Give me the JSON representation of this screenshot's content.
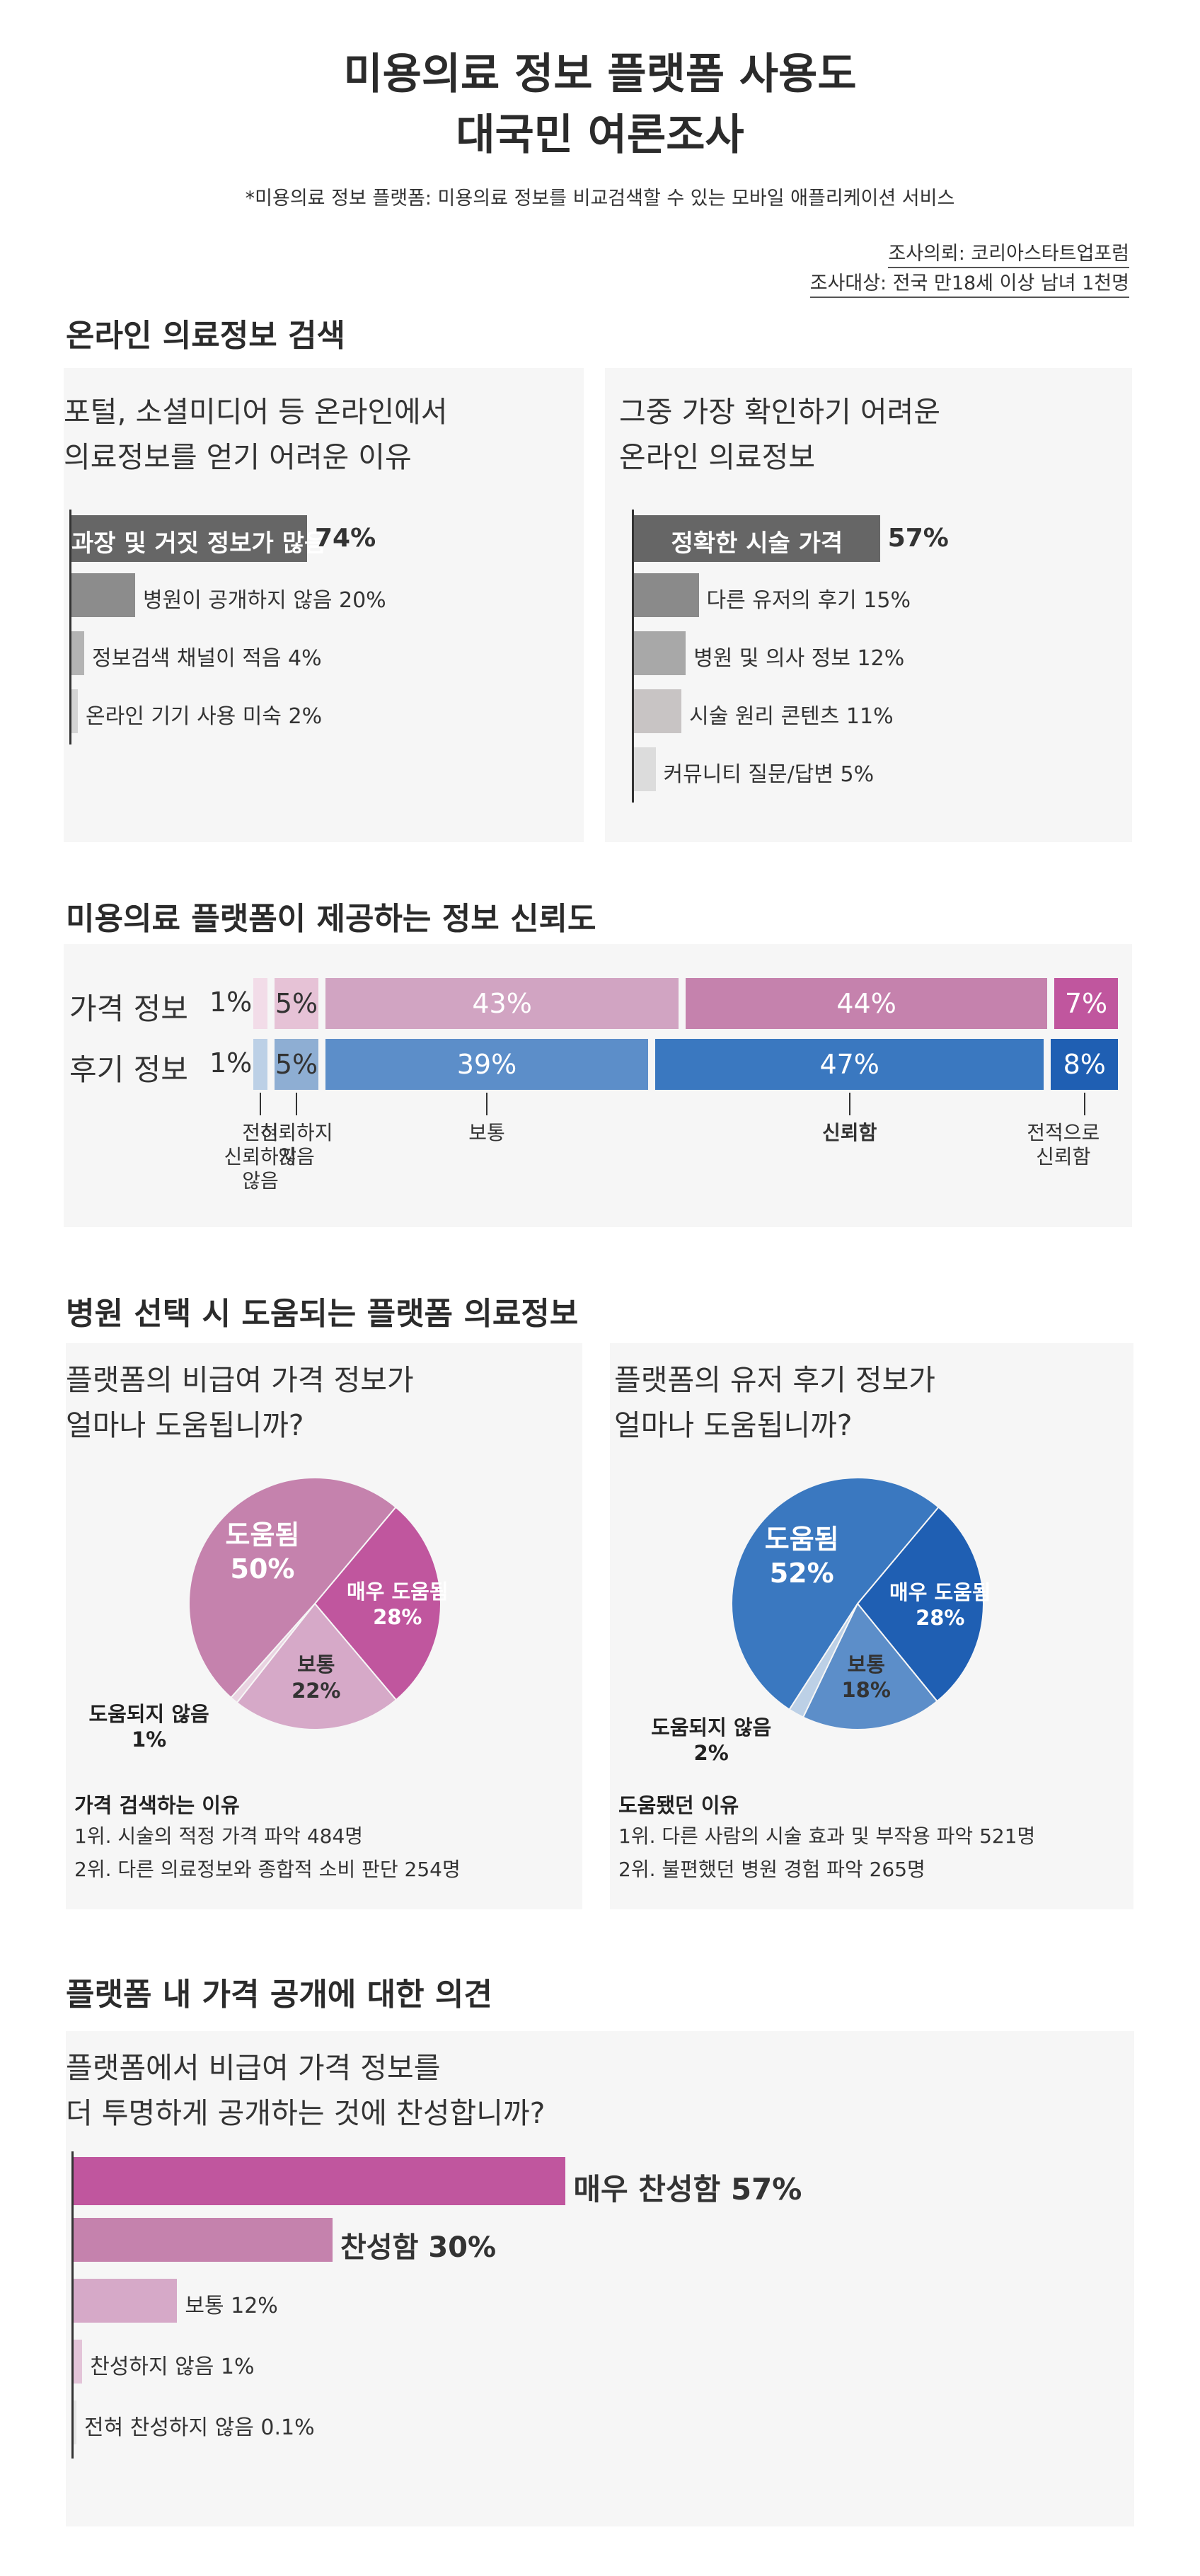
{
  "header": {
    "title_line1": "미용의료 정보 플랫폼 사용도",
    "title_line2": "대국민 여론조사",
    "note": "*미용의료 정보 플랫폼: 미용의료 정보를 비교검색할 수 있는 모바일 애플리케이션 서비스",
    "client": "조사의뢰: 코리아스타트업포럼",
    "target": "조사대상: 전국 만18세 이상 남녀 1천명"
  },
  "sections": {
    "s1": "온라인 의료정보 검색",
    "s2": "미용의료 플랫폼이 제공하는 정보 신뢰도",
    "s3": "병원 선택 시 도움되는 플랫폼 의료정보",
    "s4": "플랫폼 내 가격 공개에 대한 의견"
  },
  "chart_data": [
    {
      "type": "bar",
      "title": "포털, 소셜미디어 등 온라인에서 의료정보를 얻기 어려운 이유",
      "title_line1": "포털, 소셜미디어 등 온라인에서",
      "title_line2": "의료정보를 얻기 어려운 이유",
      "categories": [
        "과장 및 거짓 정보가 많음",
        "병원이 공개하지 않음",
        "정보검색 채널이 적음",
        "온라인 기기 사용 미숙"
      ],
      "values": [
        74,
        20,
        4,
        2
      ],
      "value_labels": [
        "74%",
        "20%",
        "4%",
        "2%"
      ],
      "colors": [
        "#666666",
        "#8c8c8c",
        "#b3b3b3",
        "#d4d4d4"
      ]
    },
    {
      "type": "bar",
      "title": "그중 가장 확인하기 어려운 온라인 의료정보",
      "title_line1": "그중 가장 확인하기 어려운",
      "title_line2": "온라인 의료정보",
      "categories": [
        "정확한 시술 가격",
        "다른 유저의 후기",
        "병원 및 의사 정보",
        "시술 원리 콘텐츠",
        "커뮤니티 질문/답변"
      ],
      "values": [
        57,
        15,
        12,
        11,
        5
      ],
      "value_labels": [
        "57%",
        "15%",
        "12%",
        "11%",
        "5%"
      ],
      "colors": [
        "#666666",
        "#8a8a8a",
        "#a8a8a8",
        "#c8c4c4",
        "#dcdcdc"
      ]
    },
    {
      "type": "bar",
      "stacked": true,
      "categories": [
        "전혀 신뢰하지 않음",
        "신뢰하지 않음",
        "보통",
        "신뢰함",
        "전적으로 신뢰함"
      ],
      "category_lines": [
        [
          "전혀",
          "신뢰하지",
          "않음"
        ],
        [
          "신뢰하지",
          "않음"
        ],
        [
          "보통"
        ],
        [
          "신뢰함"
        ],
        [
          "전적으로",
          "신뢰함"
        ]
      ],
      "series": [
        {
          "name": "가격 정보",
          "values": [
            1,
            5,
            43,
            44,
            7
          ],
          "labels": [
            "1%",
            "5%",
            "43%",
            "44%",
            "7%"
          ],
          "colors": [
            "#f2dce8",
            "#e6c2d6",
            "#d1a4c2",
            "#c582ad",
            "#c0569e"
          ]
        },
        {
          "name": "후기 정보",
          "values": [
            1,
            5,
            39,
            47,
            8
          ],
          "labels": [
            "1%",
            "5%",
            "39%",
            "47%",
            "8%"
          ],
          "colors": [
            "#bcd0e6",
            "#8eaed3",
            "#5c8ec9",
            "#3a78c0",
            "#1f5fb3"
          ]
        }
      ]
    },
    {
      "type": "pie",
      "title_line1": "플랫폼의 비급여 가격 정보가",
      "title_line2": "얼마나 도움됩니까?",
      "slices": [
        {
          "label": "도움됨",
          "value": 50,
          "value_label": "50%",
          "color": "#c582ad"
        },
        {
          "label": "매우 도움됨",
          "value": 28,
          "value_label": "28%",
          "color": "#c0569e"
        },
        {
          "label": "보통",
          "value": 22,
          "value_label": "22%",
          "color": "#d6a9c8"
        },
        {
          "label": "도움되지 않음",
          "value": 1,
          "value_label": "1%",
          "color": "#e9d3e1"
        }
      ],
      "reasons_title": "가격 검색하는 이유",
      "reasons": [
        "1위. 시술의 적정 가격 파악  484명",
        "2위. 다른 의료정보와 종합적 소비 판단  254명"
      ]
    },
    {
      "type": "pie",
      "title_line1": "플랫폼의 유저 후기 정보가",
      "title_line2": "얼마나 도움됩니까?",
      "slices": [
        {
          "label": "도움됨",
          "value": 52,
          "value_label": "52%",
          "color": "#3a78c0"
        },
        {
          "label": "매우 도움됨",
          "value": 28,
          "value_label": "28%",
          "color": "#1f5fb3"
        },
        {
          "label": "보통",
          "value": 18,
          "value_label": "18%",
          "color": "#5c8ec9"
        },
        {
          "label": "도움되지 않음",
          "value": 2,
          "value_label": "2%",
          "color": "#bcd0e6"
        }
      ],
      "reasons_title": "도움됐던 이유",
      "reasons": [
        "1위. 다른 사람의 시술 효과 및 부작용 파악  521명",
        "2위. 불편했던 병원 경험 파악  265명"
      ]
    },
    {
      "type": "bar",
      "title_line1": "플랫폼에서 비급여 가격 정보를",
      "title_line2": "더 투명하게 공개하는 것에 찬성합니까?",
      "categories": [
        "매우 찬성함",
        "찬성함",
        "보통",
        "찬성하지 않음",
        "전혀 찬성하지 않음"
      ],
      "values": [
        57,
        30,
        12,
        1,
        0.1
      ],
      "value_labels": [
        "57%",
        "30%",
        "12%",
        "1%",
        "0.1%"
      ],
      "colors": [
        "#c0569e",
        "#c582ad",
        "#d6a9c8",
        "#e3c4d8",
        "#e6e6e6"
      ]
    }
  ]
}
